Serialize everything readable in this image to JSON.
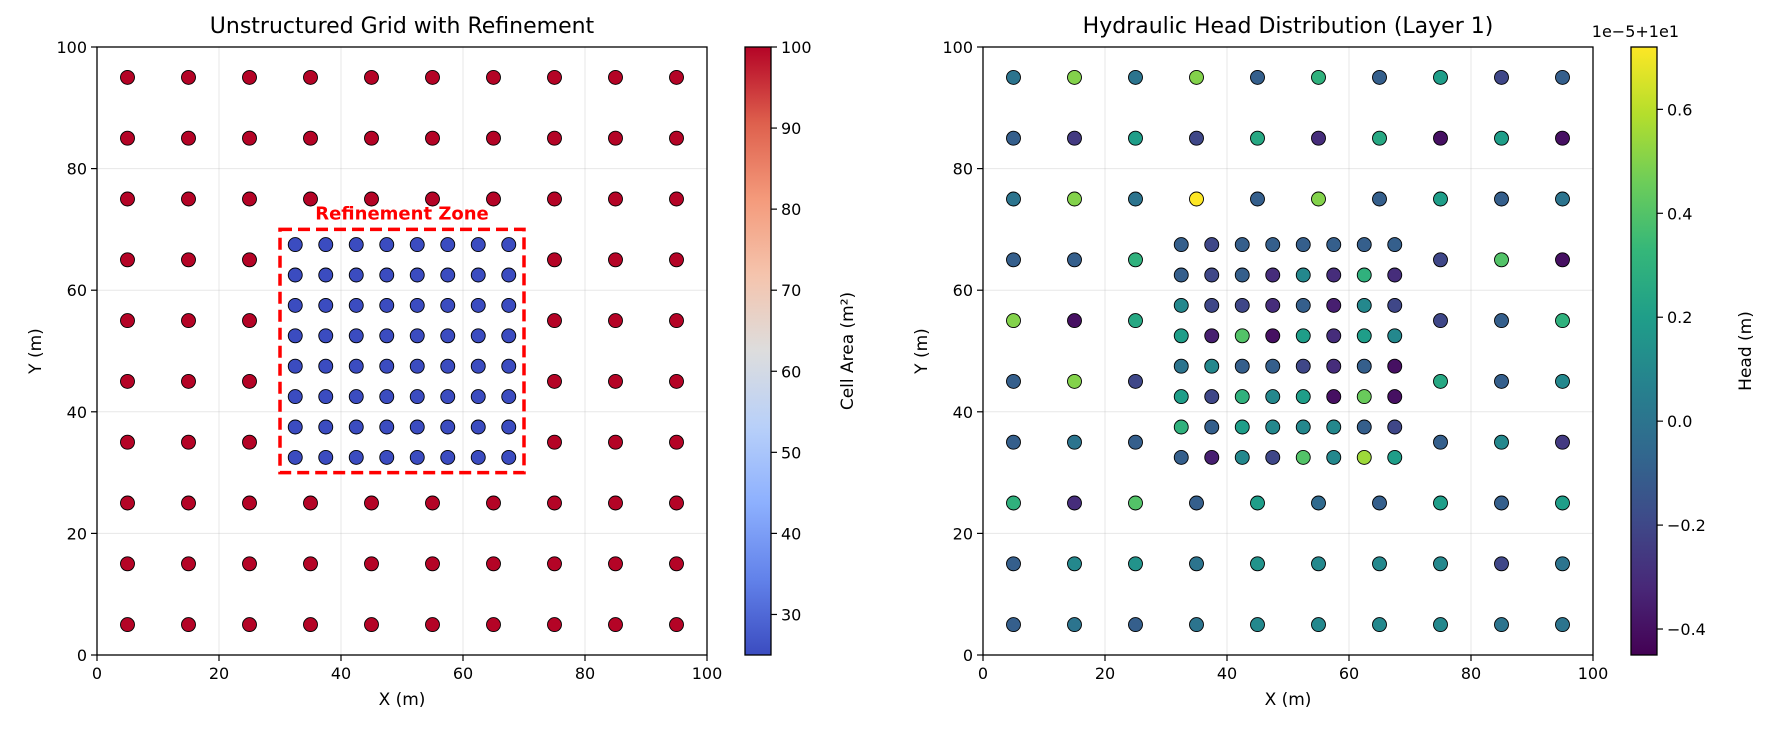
{
  "chart_data": [
    {
      "type": "scatter",
      "title": "Unstructured Grid with Refinement",
      "xlabel": "X (m)",
      "ylabel": "Y (m)",
      "xlim": [
        0,
        100
      ],
      "ylim": [
        0,
        100
      ],
      "xticks": [
        "0",
        "20",
        "40",
        "60",
        "80",
        "100"
      ],
      "yticks": [
        "0",
        "20",
        "40",
        "60",
        "80",
        "100"
      ],
      "grid": true,
      "coarse_cells": {
        "spacing": 10,
        "start": 5,
        "count": 10,
        "area": 100
      },
      "refined_cells": {
        "spacing": 5,
        "start": 32.5,
        "count": 8,
        "area": 25
      },
      "refinement_zone": {
        "x": [
          30,
          70
        ],
        "y": [
          30,
          70
        ],
        "color": "#ff0000"
      },
      "annotation": "Refinement Zone",
      "annotation_color": "#ff0000",
      "colorbar": {
        "label": "Cell Area (m²)",
        "colormap": "coolwarm",
        "range": [
          25,
          100
        ],
        "ticks": [
          "30",
          "40",
          "50",
          "60",
          "70",
          "80",
          "90",
          "100"
        ]
      }
    },
    {
      "type": "scatter",
      "title": "Hydraulic Head Distribution (Layer 1)",
      "xlabel": "X (m)",
      "ylabel": "Y (m)",
      "xlim": [
        0,
        100
      ],
      "ylim": [
        0,
        100
      ],
      "xticks": [
        "0",
        "20",
        "40",
        "60",
        "80",
        "100"
      ],
      "yticks": [
        "0",
        "20",
        "40",
        "60",
        "80",
        "100"
      ],
      "grid": true,
      "colorbar": {
        "label": "Head (m)",
        "colormap": "viridis",
        "range": [
          -0.45,
          0.72
        ],
        "ticks": [
          "−0.4",
          "−0.2",
          "0.0",
          "0.2",
          "0.4",
          "0.6"
        ],
        "offset_text": "1e−5+1e1"
      },
      "head_units_note": "values below are offset-scaled head (x1e-5 + 10 m)",
      "coarse_grid_values": [
        [
          0.0,
          0.5,
          0.0,
          0.5,
          -0.1,
          0.3,
          -0.1,
          0.2,
          -0.2,
          -0.1
        ],
        [
          -0.1,
          -0.25,
          0.2,
          -0.2,
          0.25,
          -0.3,
          0.25,
          -0.4,
          0.2,
          -0.4
        ],
        [
          0.0,
          0.5,
          0.0,
          0.72,
          -0.1,
          0.5,
          -0.1,
          0.2,
          -0.1,
          0.0
        ],
        [
          -0.1,
          -0.1,
          0.3,
          null,
          null,
          null,
          null,
          -0.2,
          0.4,
          -0.4
        ],
        [
          0.5,
          -0.4,
          0.25,
          null,
          null,
          null,
          null,
          -0.2,
          -0.1,
          0.3
        ],
        [
          -0.1,
          0.5,
          -0.2,
          null,
          null,
          null,
          null,
          0.25,
          -0.1,
          0.1
        ],
        [
          -0.1,
          0.0,
          -0.1,
          null,
          null,
          null,
          null,
          -0.1,
          0.1,
          -0.25
        ],
        [
          0.3,
          -0.3,
          0.4,
          -0.1,
          0.2,
          -0.05,
          -0.1,
          0.2,
          -0.1,
          0.2
        ],
        [
          -0.1,
          0.1,
          0.15,
          0.0,
          0.15,
          0.1,
          0.1,
          0.1,
          -0.2,
          0.0
        ],
        [
          -0.1,
          0.0,
          -0.1,
          0.0,
          0.1,
          0.1,
          0.1,
          0.1,
          0.0,
          0.0
        ]
      ],
      "refined_grid_values": [
        [
          -0.1,
          -0.2,
          -0.1,
          -0.1,
          -0.1,
          -0.1,
          -0.1,
          -0.1
        ],
        [
          -0.1,
          -0.2,
          -0.1,
          -0.3,
          0.1,
          -0.3,
          0.3,
          -0.3
        ],
        [
          0.1,
          -0.2,
          -0.2,
          -0.3,
          -0.1,
          -0.35,
          0.1,
          -0.2
        ],
        [
          0.2,
          -0.35,
          0.4,
          -0.4,
          0.2,
          -0.3,
          0.2,
          0.1
        ],
        [
          0.0,
          0.1,
          -0.1,
          -0.1,
          -0.2,
          -0.3,
          -0.1,
          -0.4
        ],
        [
          0.2,
          -0.2,
          0.3,
          0.1,
          0.2,
          -0.4,
          0.45,
          -0.4
        ],
        [
          0.3,
          -0.1,
          0.2,
          0.1,
          0.1,
          0.1,
          -0.1,
          -0.2
        ],
        [
          -0.1,
          -0.35,
          0.1,
          -0.2,
          0.4,
          0.1,
          0.55,
          0.2
        ]
      ]
    }
  ]
}
